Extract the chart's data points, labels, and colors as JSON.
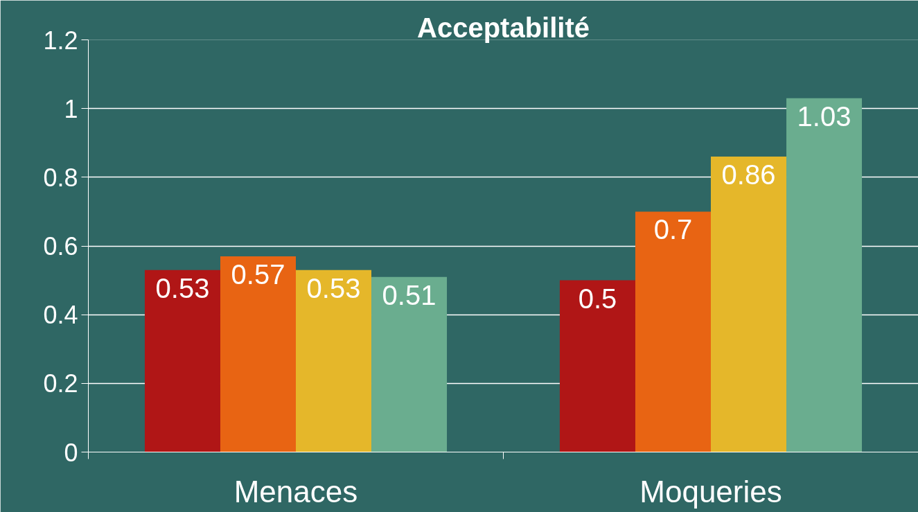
{
  "chart_data": {
    "type": "bar",
    "title": "Acceptabilité",
    "categories": [
      "Menaces",
      "Moqueries"
    ],
    "series": [
      {
        "color": "#b01616",
        "values": [
          0.53,
          0.5
        ]
      },
      {
        "color": "#e86413",
        "values": [
          0.57,
          0.7
        ]
      },
      {
        "color": "#e5b72a",
        "values": [
          0.53,
          0.86
        ]
      },
      {
        "color": "#6aad8f",
        "values": [
          0.51,
          1.03
        ]
      }
    ],
    "ylim": [
      0,
      1.2
    ],
    "yticks": [
      0,
      0.2,
      0.4,
      0.6,
      0.8,
      1,
      1.2
    ],
    "grid": "y",
    "data_labels": true
  }
}
